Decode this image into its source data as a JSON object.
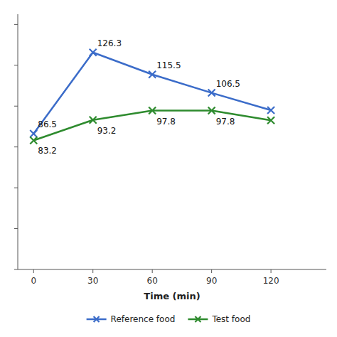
{
  "chart_data": {
    "type": "line",
    "x": [
      0,
      30,
      60,
      90,
      120
    ],
    "series": [
      {
        "name": "Reference food",
        "color": "#3B6CC9",
        "marker": "x",
        "values": [
          86.5,
          126.3,
          115.5,
          106.5,
          98.0
        ]
      },
      {
        "name": "Test food",
        "color": "#2E8B2E",
        "marker": "x",
        "values": [
          83.2,
          93.2,
          97.8,
          97.8,
          93.0
        ]
      }
    ],
    "xlabel": "Time (min)",
    "xlim": [
      -8,
      148
    ],
    "ylim": [
      20,
      145
    ],
    "xticks": [
      0,
      30,
      60,
      90,
      120
    ],
    "yticks": [
      20,
      40,
      60,
      80,
      100,
      120,
      140
    ],
    "tick_labels": "x",
    "grid": false,
    "legend": "bottom",
    "annotations": [
      {
        "text": "86.5",
        "x": 0,
        "y": 86.5
      },
      {
        "text": "126.3",
        "x": 30,
        "y": 126.3
      },
      {
        "text": "115.5",
        "x": 60,
        "y": 115.5
      },
      {
        "text": "106.5",
        "x": 90,
        "y": 106.5
      },
      {
        "text": "83.2",
        "x": 0,
        "y": 83.2
      },
      {
        "text": "93.2",
        "x": 30,
        "y": 93.2
      },
      {
        "text": "97.8",
        "x": 60,
        "y": 97.8
      },
      {
        "text": "97.8",
        "x": 90,
        "y": 97.8
      }
    ]
  }
}
